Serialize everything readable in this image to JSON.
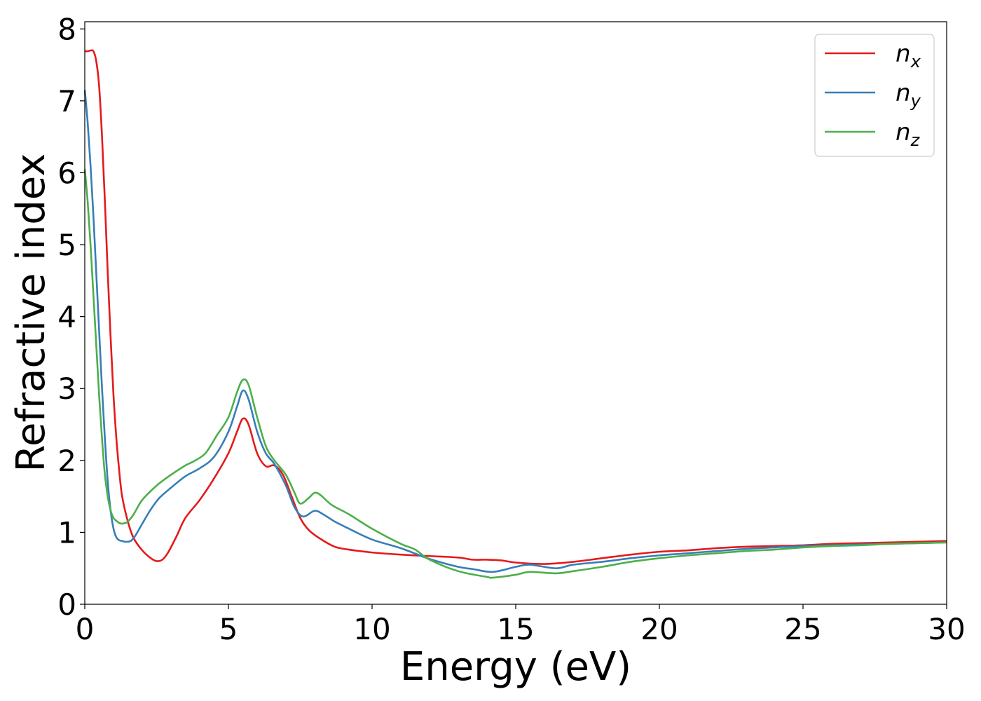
{
  "chart_data": {
    "type": "line",
    "title": "",
    "xlabel": "Energy (eV)",
    "ylabel": "Refractive index",
    "xlim": [
      0,
      30
    ],
    "ylim": [
      0,
      8.1
    ],
    "xticks": [
      0,
      5,
      10,
      15,
      20,
      25,
      30
    ],
    "yticks": [
      0,
      1,
      2,
      3,
      4,
      5,
      6,
      7,
      8
    ],
    "grid": false,
    "legend": {
      "position": "top-right"
    },
    "series": [
      {
        "name": "n",
        "subscript": "x",
        "color": "#e41a1c",
        "x": [
          0,
          0.1,
          0.2,
          0.3,
          0.4,
          0.5,
          0.6,
          0.7,
          0.8,
          0.9,
          1.0,
          1.1,
          1.2,
          1.3,
          1.5,
          1.7,
          2.0,
          2.3,
          2.5,
          2.7,
          2.9,
          3.2,
          3.5,
          4.0,
          4.5,
          5.0,
          5.3,
          5.5,
          5.7,
          6.0,
          6.3,
          6.6,
          6.9,
          7.2,
          7.5,
          7.8,
          8.2,
          8.7,
          9.2,
          10,
          11,
          12,
          13,
          13.5,
          14,
          14.5,
          15,
          16,
          17,
          18,
          19,
          20,
          21,
          22,
          23,
          24,
          25,
          26,
          27,
          28,
          29,
          30
        ],
        "y": [
          7.69,
          7.69,
          7.7,
          7.69,
          7.55,
          7.2,
          6.5,
          5.6,
          4.6,
          3.7,
          2.9,
          2.3,
          1.85,
          1.5,
          1.15,
          0.92,
          0.75,
          0.64,
          0.6,
          0.62,
          0.72,
          0.95,
          1.2,
          1.45,
          1.75,
          2.1,
          2.4,
          2.58,
          2.5,
          2.1,
          1.92,
          1.93,
          1.8,
          1.5,
          1.2,
          1.03,
          0.91,
          0.8,
          0.76,
          0.72,
          0.69,
          0.67,
          0.65,
          0.62,
          0.62,
          0.61,
          0.58,
          0.56,
          0.59,
          0.64,
          0.69,
          0.73,
          0.75,
          0.78,
          0.8,
          0.81,
          0.82,
          0.84,
          0.85,
          0.86,
          0.87,
          0.88
        ]
      },
      {
        "name": "n",
        "subscript": "y",
        "color": "#377eb8",
        "x": [
          0,
          0.1,
          0.2,
          0.3,
          0.4,
          0.5,
          0.6,
          0.7,
          0.8,
          0.9,
          1.0,
          1.1,
          1.2,
          1.3,
          1.4,
          1.5,
          1.6,
          1.7,
          1.8,
          2.0,
          2.3,
          2.6,
          3.0,
          3.5,
          4.0,
          4.5,
          5.0,
          5.3,
          5.5,
          5.7,
          6.0,
          6.3,
          6.6,
          7.0,
          7.3,
          7.6,
          8.0,
          8.3,
          8.7,
          9.2,
          10,
          11,
          12,
          13,
          13.5,
          14.2,
          15,
          15.5,
          16.4,
          17,
          18,
          19,
          20,
          21,
          22,
          23,
          24,
          25,
          26,
          27,
          28,
          29,
          30
        ],
        "y": [
          7.15,
          6.7,
          6.1,
          5.4,
          4.6,
          3.8,
          3.0,
          2.3,
          1.7,
          1.3,
          1.05,
          0.93,
          0.89,
          0.88,
          0.87,
          0.87,
          0.88,
          0.92,
          0.98,
          1.12,
          1.32,
          1.48,
          1.62,
          1.78,
          1.89,
          2.05,
          2.4,
          2.75,
          2.97,
          2.85,
          2.4,
          2.1,
          1.95,
          1.65,
          1.35,
          1.22,
          1.3,
          1.25,
          1.15,
          1.05,
          0.9,
          0.78,
          0.63,
          0.52,
          0.49,
          0.45,
          0.52,
          0.55,
          0.5,
          0.55,
          0.59,
          0.64,
          0.68,
          0.71,
          0.74,
          0.77,
          0.79,
          0.81,
          0.82,
          0.83,
          0.84,
          0.85,
          0.86
        ]
      },
      {
        "name": "n",
        "subscript": "z",
        "color": "#4daf4a",
        "x": [
          0,
          0.1,
          0.2,
          0.3,
          0.4,
          0.5,
          0.6,
          0.7,
          0.8,
          0.9,
          1.0,
          1.1,
          1.2,
          1.3,
          1.4,
          1.5,
          1.7,
          2.0,
          2.5,
          3.0,
          3.5,
          3.8,
          4.2,
          4.6,
          5.0,
          5.3,
          5.5,
          5.7,
          6.0,
          6.3,
          6.6,
          7.0,
          7.3,
          7.5,
          7.8,
          8.0,
          8.2,
          8.6,
          9.2,
          10,
          11,
          11.5,
          12,
          13,
          14,
          14.2,
          15,
          15.5,
          16.4,
          17,
          18,
          19,
          20,
          21,
          22,
          23,
          24,
          25,
          26,
          27,
          28,
          29,
          30
        ],
        "y": [
          6.05,
          5.6,
          5.0,
          4.3,
          3.6,
          2.9,
          2.3,
          1.8,
          1.5,
          1.3,
          1.2,
          1.16,
          1.13,
          1.12,
          1.13,
          1.15,
          1.25,
          1.45,
          1.65,
          1.8,
          1.93,
          1.99,
          2.1,
          2.35,
          2.6,
          2.95,
          3.12,
          3.05,
          2.6,
          2.2,
          2.0,
          1.8,
          1.55,
          1.4,
          1.48,
          1.55,
          1.52,
          1.38,
          1.25,
          1.05,
          0.84,
          0.76,
          0.62,
          0.46,
          0.38,
          0.37,
          0.41,
          0.45,
          0.43,
          0.46,
          0.52,
          0.59,
          0.64,
          0.68,
          0.71,
          0.74,
          0.76,
          0.79,
          0.81,
          0.82,
          0.84,
          0.85,
          0.86
        ]
      }
    ]
  }
}
